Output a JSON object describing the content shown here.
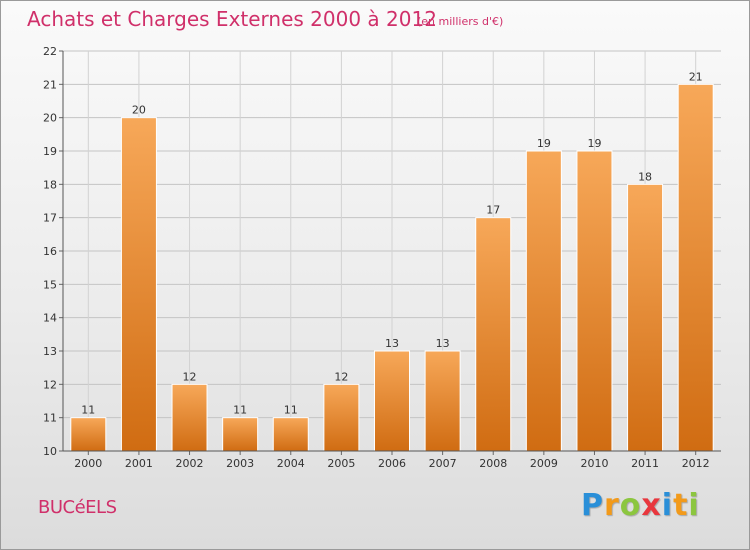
{
  "header": {
    "title": "Achats et Charges Externes 2000 à 2012",
    "subtitle": "(en milliers d'€)"
  },
  "footer": {
    "town": "BUCéELS",
    "logo_letters": [
      "P",
      "r",
      "o",
      "x",
      "i",
      "t",
      "i"
    ],
    "logo_colors": [
      "#2a8fd8",
      "#f29a1a",
      "#8cc63f",
      "#e8373e",
      "#2a8fd8",
      "#f29a1a",
      "#8cc63f"
    ]
  },
  "colors": {
    "bar_top": "#f7a859",
    "bar_bottom": "#d06c12",
    "text": "#333333"
  },
  "chart_data": {
    "type": "bar",
    "title": "Achats et Charges Externes 2000 à 2012",
    "subtitle": "(en milliers d'€)",
    "categories": [
      "2000",
      "2001",
      "2002",
      "2003",
      "2004",
      "2005",
      "2006",
      "2007",
      "2008",
      "2009",
      "2010",
      "2011",
      "2012"
    ],
    "values": [
      11,
      20,
      12,
      11,
      11,
      12,
      13,
      13,
      17,
      19,
      19,
      18,
      21
    ],
    "ylim": [
      10,
      22
    ],
    "yticks": [
      10,
      11,
      12,
      13,
      14,
      15,
      16,
      17,
      18,
      19,
      20,
      21,
      22
    ],
    "grid": true,
    "legend": "none"
  }
}
